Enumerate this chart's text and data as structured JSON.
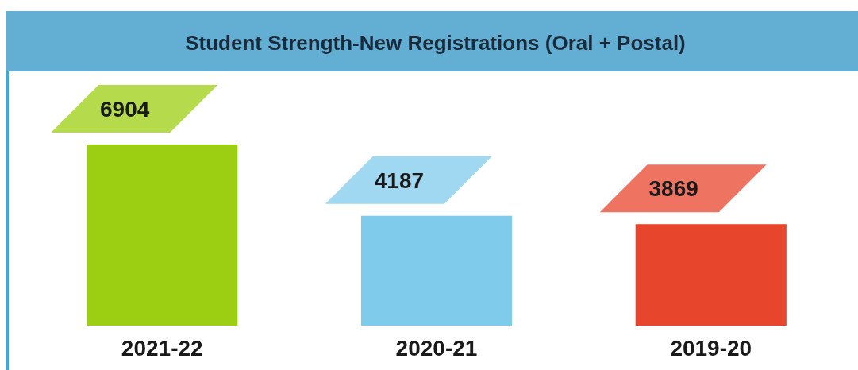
{
  "chart_data": {
    "type": "bar",
    "title": "Student Strength-New Registrations (Oral + Postal)",
    "categories": [
      "2021-22",
      "2020-21",
      "2019-20"
    ],
    "values": [
      6904,
      4187,
      3869
    ],
    "colors": [
      "#9ccf12",
      "#7fcbeb",
      "#e8462c"
    ],
    "data_labels": true
  }
}
